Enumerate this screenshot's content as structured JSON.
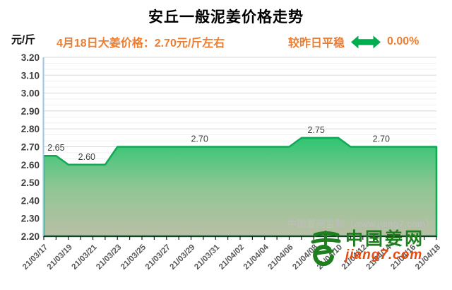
{
  "title": "安丘一般泥姜价格走势",
  "y_axis_unit": "元/斤",
  "subtitle": "4月18日大姜价格：2.70元/斤左右",
  "status": {
    "label": "较昨日平稳",
    "change": "0.00%",
    "arrow_icon": "flat-left-right-arrow",
    "arrow_color": "#00AD4F",
    "text_color": "#ED7D31"
  },
  "watermark": "中国姜网监制（www.jiang7.com）",
  "logo": {
    "icon": "ginger-logo",
    "name": "中国姜网",
    "site": "jiang7.com",
    "green": "#1E7F1E",
    "orange": "#E8490F"
  },
  "chart_data": {
    "type": "area",
    "title": "安丘一般泥姜价格走势",
    "ylabel": "元/斤",
    "ylim": [
      2.2,
      3.2
    ],
    "y_major_step": 0.1,
    "y_tick_labels": [
      "3.20",
      "3.10",
      "3.00",
      "2.90",
      "2.80",
      "2.70",
      "2.60",
      "2.50",
      "2.40",
      "2.30",
      "2.20"
    ],
    "grid": "major+minor",
    "legend": "none",
    "x": [
      "21/03/17",
      "21/03/18",
      "21/03/19",
      "21/03/20",
      "21/03/21",
      "21/03/22",
      "21/03/23",
      "21/03/24",
      "21/03/25",
      "21/03/26",
      "21/03/27",
      "21/03/28",
      "21/03/29",
      "21/03/30",
      "21/03/31",
      "21/04/01",
      "21/04/02",
      "21/04/03",
      "21/04/04",
      "21/04/05",
      "21/04/06",
      "21/04/07",
      "21/04/08",
      "21/04/09",
      "21/04/10",
      "21/04/11",
      "21/04/12",
      "21/04/13",
      "21/04/14",
      "21/04/15",
      "21/04/16",
      "21/04/17",
      "21/04/18"
    ],
    "values": [
      2.65,
      2.65,
      2.6,
      2.6,
      2.6,
      2.6,
      2.7,
      2.7,
      2.7,
      2.7,
      2.7,
      2.7,
      2.7,
      2.7,
      2.7,
      2.7,
      2.7,
      2.7,
      2.7,
      2.7,
      2.7,
      2.75,
      2.75,
      2.75,
      2.75,
      2.7,
      2.7,
      2.7,
      2.7,
      2.7,
      2.7,
      2.7,
      2.7
    ],
    "x_label_every_n": 2,
    "point_labels": [
      {
        "value": "2.65",
        "day": 1.0
      },
      {
        "value": "2.60",
        "day": 3.5
      },
      {
        "value": "2.70",
        "day": 12.7
      },
      {
        "value": "2.75",
        "day": 22.2
      },
      {
        "value": "2.70",
        "day": 27.5
      }
    ],
    "colors": {
      "line": "#0FA854",
      "fill_top": "#2EC573",
      "fill_mid": "#8FC693",
      "fill_bottom": "#B9BFA5",
      "grid_major": "#D8D8D8",
      "grid_minor": "#F1F1F1",
      "y_axis_line": "#9DC3E6",
      "x_axis_line": "#1A1A1A",
      "y_tick_text": "#404040",
      "x_tick_text": "#595959",
      "point_label_text": "#3F3F3F"
    }
  }
}
